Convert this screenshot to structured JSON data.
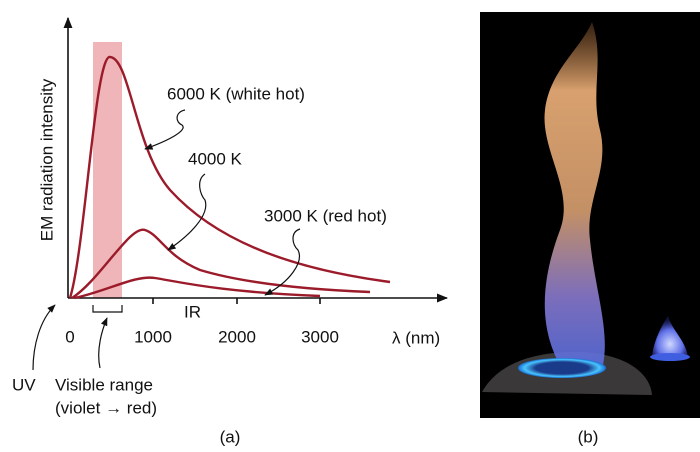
{
  "figure_a": {
    "y_axis_label": "EM radiation intensity",
    "x_axis_label": "λ (nm)",
    "x_tick_labels": [
      "0",
      "1000",
      "2000",
      "3000"
    ],
    "curves": [
      {
        "label": "6000 K (white hot)"
      },
      {
        "label": "4000 K"
      },
      {
        "label": "3000 K (red hot)"
      }
    ],
    "ir_label": "IR",
    "uv_label": "UV",
    "visible_label": "Visible range",
    "visible_sublabel": "(violet → red)",
    "caption": "(a)"
  },
  "figure_b": {
    "caption": "(b)"
  }
}
